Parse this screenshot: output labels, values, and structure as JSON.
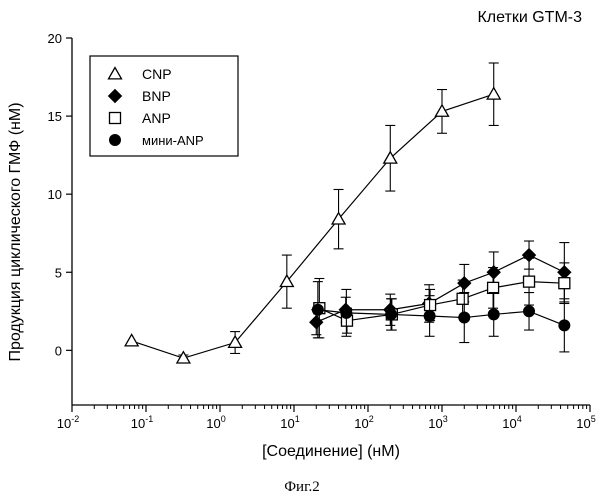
{
  "chart_data": {
    "type": "scatter",
    "title": "Клетки GTM-3",
    "caption": "Фиг.2",
    "xlabel": "[Соединение] (нМ)",
    "ylabel": "Продукция циклического ГМФ (нМ)",
    "xscale": "log",
    "xlim": [
      0.01,
      100000
    ],
    "ylim": [
      -3.5,
      20
    ],
    "x_tick_labels": [
      {
        "base": "10",
        "exp": "-2"
      },
      {
        "base": "10",
        "exp": "-1"
      },
      {
        "base": "10",
        "exp": "0"
      },
      {
        "base": "10",
        "exp": "1"
      },
      {
        "base": "10",
        "exp": "2"
      },
      {
        "base": "10",
        "exp": "3"
      },
      {
        "base": "10",
        "exp": "4"
      },
      {
        "base": "10",
        "exp": "5"
      }
    ],
    "y_ticks": [
      0,
      5,
      10,
      15,
      20
    ],
    "y_tick_labels": [
      "0",
      "5",
      "10",
      "15",
      "20"
    ],
    "legend_position": "top-left",
    "series": [
      {
        "name": "CNP",
        "marker": "triangle-open",
        "x": [
          0.064,
          0.32,
          1.6,
          8,
          40,
          200,
          1000,
          5000
        ],
        "y": [
          0.6,
          -0.5,
          0.5,
          4.4,
          8.4,
          12.3,
          15.3,
          16.4
        ],
        "err": [
          0,
          0.2,
          0.7,
          1.7,
          1.9,
          2.1,
          1.4,
          2.0
        ]
      },
      {
        "name": "BNP",
        "marker": "diamond-filled",
        "x": [
          20,
          50,
          200,
          670,
          2000,
          5000,
          15000,
          45000
        ],
        "y": [
          1.8,
          2.6,
          2.6,
          3.0,
          4.3,
          5.0,
          6.1,
          5.0
        ],
        "err": [
          0.8,
          0.8,
          1.0,
          1.2,
          1.2,
          1.3,
          0.9,
          1.9
        ]
      },
      {
        "name": "ANP",
        "marker": "square-open",
        "x": [
          22,
          52,
          210,
          690,
          1900,
          4900,
          15000,
          45000
        ],
        "y": [
          2.7,
          1.9,
          2.3,
          2.9,
          3.3,
          4.0,
          4.4,
          4.3
        ],
        "err": [
          1.9,
          0.8,
          1.0,
          1.0,
          1.2,
          1.3,
          1.5,
          1.3
        ]
      },
      {
        "name": "мини-ANP",
        "marker": "circle-filled",
        "x": [
          21,
          51,
          205,
          680,
          2000,
          5000,
          15000,
          45000
        ],
        "y": [
          2.6,
          2.4,
          2.3,
          2.2,
          2.1,
          2.3,
          2.5,
          1.6
        ],
        "err": [
          1.8,
          1.5,
          1.0,
          1.3,
          1.6,
          1.4,
          1.2,
          1.7
        ]
      }
    ]
  }
}
